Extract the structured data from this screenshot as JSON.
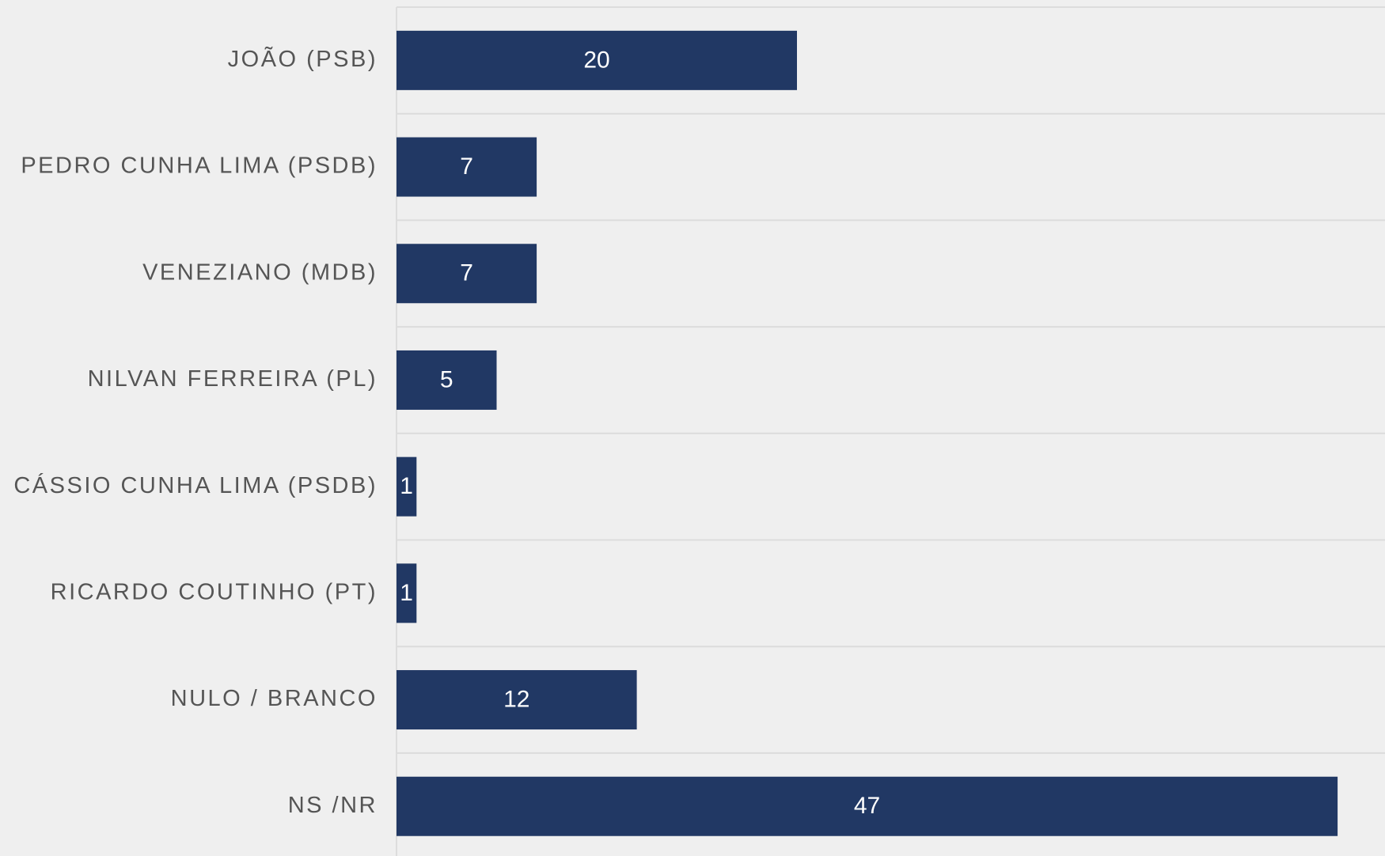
{
  "chart_data": {
    "type": "bar",
    "orientation": "horizontal",
    "categories": [
      "JOÃO (PSB)",
      "PEDRO CUNHA LIMA (PSDB)",
      "VENEZIANO (MDB)",
      "NILVAN FERREIRA (PL)",
      "CÁSSIO CUNHA LIMA (PSDB)",
      "RICARDO COUTINHO (PT)",
      "NULO / BRANCO",
      "NS /NR"
    ],
    "values": [
      20,
      7,
      7,
      5,
      1,
      1,
      12,
      47
    ],
    "color": "#213864",
    "xlim": [
      0,
      50
    ]
  }
}
